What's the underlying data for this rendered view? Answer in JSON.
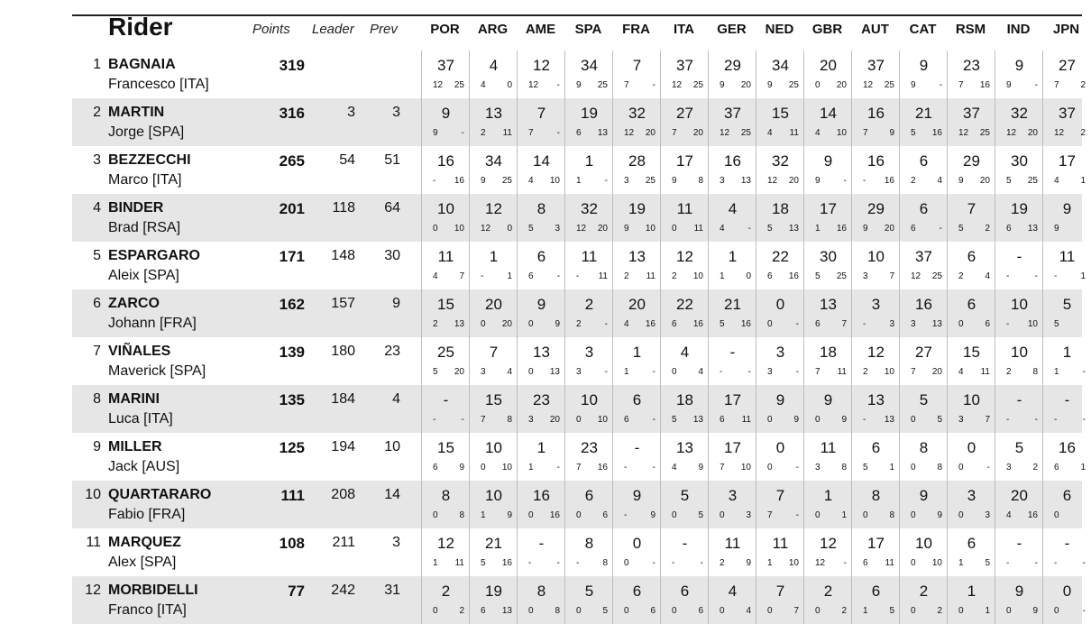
{
  "header": {
    "rider": "Rider",
    "points": "Points",
    "leader": "Leader",
    "prev": "Prev",
    "races": [
      "POR",
      "ARG",
      "AME",
      "SPA",
      "FRA",
      "ITA",
      "GER",
      "NED",
      "GBR",
      "AUT",
      "CAT",
      "RSM",
      "IND",
      "JPN"
    ]
  },
  "rows": [
    {
      "pos": "1",
      "surname": "BAGNAIA",
      "first": "Francesco [ITA]",
      "points": "319",
      "leader": "",
      "prev": "",
      "races": [
        [
          "37",
          "12",
          "25"
        ],
        [
          "4",
          "4",
          "0"
        ],
        [
          "12",
          "12",
          "-"
        ],
        [
          "34",
          "9",
          "25"
        ],
        [
          "7",
          "7",
          "-"
        ],
        [
          "37",
          "12",
          "25"
        ],
        [
          "29",
          "9",
          "20"
        ],
        [
          "34",
          "9",
          "25"
        ],
        [
          "20",
          "0",
          "20"
        ],
        [
          "37",
          "12",
          "25"
        ],
        [
          "9",
          "9",
          "-"
        ],
        [
          "23",
          "7",
          "16"
        ],
        [
          "9",
          "9",
          "-"
        ],
        [
          "27",
          "7",
          "2"
        ]
      ]
    },
    {
      "pos": "2",
      "surname": "MARTIN",
      "first": "Jorge [SPA]",
      "points": "316",
      "leader": "3",
      "prev": "3",
      "races": [
        [
          "9",
          "9",
          "-"
        ],
        [
          "13",
          "2",
          "11"
        ],
        [
          "7",
          "7",
          "-"
        ],
        [
          "19",
          "6",
          "13"
        ],
        [
          "32",
          "12",
          "20"
        ],
        [
          "27",
          "7",
          "20"
        ],
        [
          "37",
          "12",
          "25"
        ],
        [
          "15",
          "4",
          "11"
        ],
        [
          "14",
          "4",
          "10"
        ],
        [
          "16",
          "7",
          "9"
        ],
        [
          "21",
          "5",
          "16"
        ],
        [
          "37",
          "12",
          "25"
        ],
        [
          "32",
          "12",
          "20"
        ],
        [
          "37",
          "12",
          "2"
        ]
      ]
    },
    {
      "pos": "3",
      "surname": "BEZZECCHI",
      "first": "Marco [ITA]",
      "points": "265",
      "leader": "54",
      "prev": "51",
      "races": [
        [
          "16",
          "-",
          "16"
        ],
        [
          "34",
          "9",
          "25"
        ],
        [
          "14",
          "4",
          "10"
        ],
        [
          "1",
          "1",
          "-"
        ],
        [
          "28",
          "3",
          "25"
        ],
        [
          "17",
          "9",
          "8"
        ],
        [
          "16",
          "3",
          "13"
        ],
        [
          "32",
          "12",
          "20"
        ],
        [
          "9",
          "9",
          "-"
        ],
        [
          "16",
          "-",
          "16"
        ],
        [
          "6",
          "2",
          "4"
        ],
        [
          "29",
          "9",
          "20"
        ],
        [
          "30",
          "5",
          "25"
        ],
        [
          "17",
          "4",
          "1"
        ]
      ]
    },
    {
      "pos": "4",
      "surname": "BINDER",
      "first": "Brad [RSA]",
      "points": "201",
      "leader": "118",
      "prev": "64",
      "races": [
        [
          "10",
          "0",
          "10"
        ],
        [
          "12",
          "12",
          "0"
        ],
        [
          "8",
          "5",
          "3"
        ],
        [
          "32",
          "12",
          "20"
        ],
        [
          "19",
          "9",
          "10"
        ],
        [
          "11",
          "0",
          "11"
        ],
        [
          "4",
          "4",
          "-"
        ],
        [
          "18",
          "5",
          "13"
        ],
        [
          "17",
          "1",
          "16"
        ],
        [
          "29",
          "9",
          "20"
        ],
        [
          "6",
          "6",
          "-"
        ],
        [
          "7",
          "5",
          "2"
        ],
        [
          "19",
          "6",
          "13"
        ],
        [
          "9",
          "9",
          ""
        ]
      ]
    },
    {
      "pos": "5",
      "surname": "ESPARGARO",
      "first": "Aleix [SPA]",
      "points": "171",
      "leader": "148",
      "prev": "30",
      "races": [
        [
          "11",
          "4",
          "7"
        ],
        [
          "1",
          "-",
          "1"
        ],
        [
          "6",
          "6",
          "-"
        ],
        [
          "11",
          "-",
          "11"
        ],
        [
          "13",
          "2",
          "11"
        ],
        [
          "12",
          "2",
          "10"
        ],
        [
          "1",
          "1",
          "0"
        ],
        [
          "22",
          "6",
          "16"
        ],
        [
          "30",
          "5",
          "25"
        ],
        [
          "10",
          "3",
          "7"
        ],
        [
          "37",
          "12",
          "25"
        ],
        [
          "6",
          "2",
          "4"
        ],
        [
          "-",
          "-",
          "-"
        ],
        [
          "11",
          "-",
          "1"
        ]
      ]
    },
    {
      "pos": "6",
      "surname": "ZARCO",
      "first": "Johann [FRA]",
      "points": "162",
      "leader": "157",
      "prev": "9",
      "races": [
        [
          "15",
          "2",
          "13"
        ],
        [
          "20",
          "0",
          "20"
        ],
        [
          "9",
          "0",
          "9"
        ],
        [
          "2",
          "2",
          "-"
        ],
        [
          "20",
          "4",
          "16"
        ],
        [
          "22",
          "6",
          "16"
        ],
        [
          "21",
          "5",
          "16"
        ],
        [
          "0",
          "0",
          "-"
        ],
        [
          "13",
          "6",
          "7"
        ],
        [
          "3",
          "-",
          "3"
        ],
        [
          "16",
          "3",
          "13"
        ],
        [
          "6",
          "0",
          "6"
        ],
        [
          "10",
          "-",
          "10"
        ],
        [
          "5",
          "5",
          ""
        ]
      ]
    },
    {
      "pos": "7",
      "surname": "VIÑALES",
      "first": "Maverick [SPA]",
      "points": "139",
      "leader": "180",
      "prev": "23",
      "races": [
        [
          "25",
          "5",
          "20"
        ],
        [
          "7",
          "3",
          "4"
        ],
        [
          "13",
          "0",
          "13"
        ],
        [
          "3",
          "3",
          "-"
        ],
        [
          "1",
          "1",
          "-"
        ],
        [
          "4",
          "0",
          "4"
        ],
        [
          "-",
          "-",
          "-"
        ],
        [
          "3",
          "3",
          "-"
        ],
        [
          "18",
          "7",
          "11"
        ],
        [
          "12",
          "2",
          "10"
        ],
        [
          "27",
          "7",
          "20"
        ],
        [
          "15",
          "4",
          "11"
        ],
        [
          "10",
          "2",
          "8"
        ],
        [
          "1",
          "1",
          "-"
        ]
      ]
    },
    {
      "pos": "8",
      "surname": "MARINI",
      "first": "Luca [ITA]",
      "points": "135",
      "leader": "184",
      "prev": "4",
      "races": [
        [
          "-",
          "-",
          "-"
        ],
        [
          "15",
          "7",
          "8"
        ],
        [
          "23",
          "3",
          "20"
        ],
        [
          "10",
          "0",
          "10"
        ],
        [
          "6",
          "6",
          "-"
        ],
        [
          "18",
          "5",
          "13"
        ],
        [
          "17",
          "6",
          "11"
        ],
        [
          "9",
          "0",
          "9"
        ],
        [
          "9",
          "0",
          "9"
        ],
        [
          "13",
          "-",
          "13"
        ],
        [
          "5",
          "0",
          "5"
        ],
        [
          "10",
          "3",
          "7"
        ],
        [
          "-",
          "-",
          "-"
        ],
        [
          "-",
          "-",
          "-"
        ]
      ]
    },
    {
      "pos": "9",
      "surname": "MILLER",
      "first": "Jack [AUS]",
      "points": "125",
      "leader": "194",
      "prev": "10",
      "races": [
        [
          "15",
          "6",
          "9"
        ],
        [
          "10",
          "0",
          "10"
        ],
        [
          "1",
          "1",
          "-"
        ],
        [
          "23",
          "7",
          "16"
        ],
        [
          "-",
          "-",
          "-"
        ],
        [
          "13",
          "4",
          "9"
        ],
        [
          "17",
          "7",
          "10"
        ],
        [
          "0",
          "0",
          "-"
        ],
        [
          "11",
          "3",
          "8"
        ],
        [
          "6",
          "5",
          "1"
        ],
        [
          "8",
          "0",
          "8"
        ],
        [
          "0",
          "0",
          "-"
        ],
        [
          "5",
          "3",
          "2"
        ],
        [
          "16",
          "6",
          "1"
        ]
      ]
    },
    {
      "pos": "10",
      "surname": "QUARTARARO",
      "first": "Fabio [FRA]",
      "points": "111",
      "leader": "208",
      "prev": "14",
      "races": [
        [
          "8",
          "0",
          "8"
        ],
        [
          "10",
          "1",
          "9"
        ],
        [
          "16",
          "0",
          "16"
        ],
        [
          "6",
          "0",
          "6"
        ],
        [
          "9",
          "-",
          "9"
        ],
        [
          "5",
          "0",
          "5"
        ],
        [
          "3",
          "0",
          "3"
        ],
        [
          "7",
          "7",
          "-"
        ],
        [
          "1",
          "0",
          "1"
        ],
        [
          "8",
          "0",
          "8"
        ],
        [
          "9",
          "0",
          "9"
        ],
        [
          "3",
          "0",
          "3"
        ],
        [
          "20",
          "4",
          "16"
        ],
        [
          "6",
          "0",
          ""
        ]
      ]
    },
    {
      "pos": "11",
      "surname": "MARQUEZ",
      "first": "Alex [SPA]",
      "points": "108",
      "leader": "211",
      "prev": "3",
      "races": [
        [
          "12",
          "1",
          "11"
        ],
        [
          "21",
          "5",
          "16"
        ],
        [
          "-",
          "-",
          "-"
        ],
        [
          "8",
          "-",
          "8"
        ],
        [
          "0",
          "0",
          "-"
        ],
        [
          "-",
          "-",
          "-"
        ],
        [
          "11",
          "2",
          "9"
        ],
        [
          "11",
          "1",
          "10"
        ],
        [
          "12",
          "12",
          "-"
        ],
        [
          "17",
          "6",
          "11"
        ],
        [
          "10",
          "0",
          "10"
        ],
        [
          "6",
          "1",
          "5"
        ],
        [
          "-",
          "-",
          "-"
        ],
        [
          "-",
          "-",
          "-"
        ]
      ]
    },
    {
      "pos": "12",
      "surname": "MORBIDELLI",
      "first": "Franco [ITA]",
      "points": "77",
      "leader": "242",
      "prev": "31",
      "races": [
        [
          "2",
          "0",
          "2"
        ],
        [
          "19",
          "6",
          "13"
        ],
        [
          "8",
          "0",
          "8"
        ],
        [
          "5",
          "0",
          "5"
        ],
        [
          "6",
          "0",
          "6"
        ],
        [
          "6",
          "0",
          "6"
        ],
        [
          "4",
          "0",
          "4"
        ],
        [
          "7",
          "0",
          "7"
        ],
        [
          "2",
          "0",
          "2"
        ],
        [
          "6",
          "1",
          "5"
        ],
        [
          "2",
          "0",
          "2"
        ],
        [
          "1",
          "0",
          "1"
        ],
        [
          "9",
          "0",
          "9"
        ],
        [
          "0",
          "0",
          "-"
        ]
      ]
    }
  ]
}
